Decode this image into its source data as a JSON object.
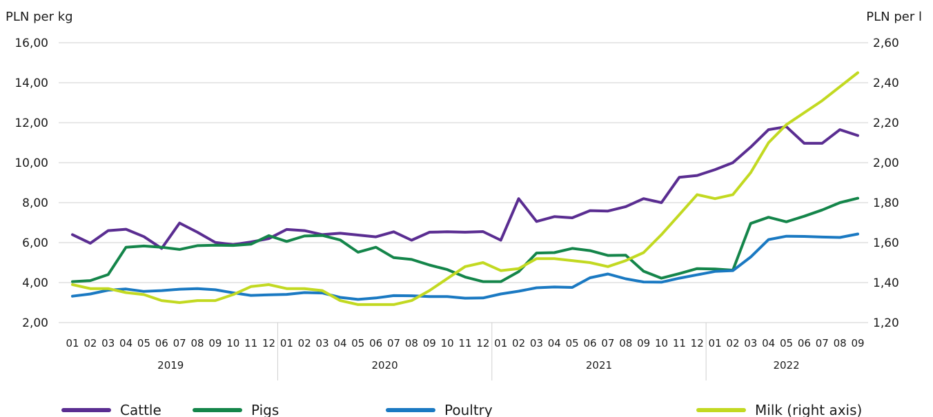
{
  "chart_data": {
    "type": "line",
    "left_unit": "PLN per kg",
    "right_unit": "PLN per l",
    "left_axis": {
      "min": 2,
      "max": 16,
      "ticks": [
        "2,00",
        "4,00",
        "6,00",
        "8,00",
        "10,00",
        "12,00",
        "14,00",
        "16,00"
      ]
    },
    "right_axis": {
      "min": 1.2,
      "max": 2.6,
      "ticks": [
        "1,20",
        "1,40",
        "1,60",
        "1,80",
        "2,00",
        "2,20",
        "2,40",
        "2,60"
      ]
    },
    "months": [
      "01",
      "02",
      "03",
      "04",
      "05",
      "06",
      "07",
      "08",
      "09",
      "10",
      "11",
      "12",
      "01",
      "02",
      "03",
      "04",
      "05",
      "06",
      "07",
      "08",
      "09",
      "10",
      "11",
      "12",
      "01",
      "02",
      "03",
      "04",
      "05",
      "06",
      "07",
      "08",
      "09",
      "10",
      "11",
      "12",
      "01",
      "02",
      "03",
      "04",
      "05",
      "06",
      "07",
      "08",
      "09"
    ],
    "years": [
      {
        "label": "2019",
        "months": 12
      },
      {
        "label": "2020",
        "months": 12
      },
      {
        "label": "2021",
        "months": 12
      },
      {
        "label": "2022",
        "months": 9
      }
    ],
    "grid": true,
    "legend_position": "bottom",
    "series": [
      {
        "name": "Cattle",
        "axis": "left",
        "color": "#5a2d91",
        "values": [
          6.4,
          5.97,
          6.6,
          6.67,
          6.3,
          5.71,
          6.98,
          6.52,
          6.01,
          5.9,
          6.03,
          6.2,
          6.66,
          6.6,
          6.4,
          6.47,
          6.38,
          6.29,
          6.54,
          6.12,
          6.52,
          6.54,
          6.52,
          6.55,
          6.12,
          8.2,
          7.06,
          7.3,
          7.24,
          7.6,
          7.58,
          7.8,
          8.2,
          8.0,
          9.27,
          9.36,
          9.65,
          10.0,
          10.78,
          11.65,
          11.8,
          10.97,
          10.97,
          11.65,
          11.36
        ]
      },
      {
        "name": "Pigs",
        "axis": "left",
        "color": "#14854a",
        "values": [
          4.05,
          4.1,
          4.4,
          5.77,
          5.83,
          5.77,
          5.66,
          5.85,
          5.87,
          5.86,
          5.92,
          6.35,
          6.06,
          6.33,
          6.36,
          6.13,
          5.52,
          5.77,
          5.25,
          5.16,
          4.88,
          4.65,
          4.28,
          4.05,
          4.05,
          4.55,
          5.48,
          5.5,
          5.71,
          5.6,
          5.36,
          5.37,
          4.57,
          4.22,
          4.45,
          4.7,
          4.68,
          4.62,
          6.96,
          7.27,
          7.04,
          7.32,
          7.63,
          8.0,
          8.22
        ]
      },
      {
        "name": "Poultry",
        "axis": "left",
        "color": "#1a79c2",
        "values": [
          3.32,
          3.43,
          3.62,
          3.68,
          3.56,
          3.6,
          3.67,
          3.7,
          3.64,
          3.49,
          3.36,
          3.39,
          3.41,
          3.5,
          3.48,
          3.26,
          3.16,
          3.23,
          3.35,
          3.34,
          3.3,
          3.3,
          3.22,
          3.23,
          3.43,
          3.57,
          3.74,
          3.78,
          3.76,
          4.24,
          4.43,
          4.19,
          4.03,
          4.02,
          4.22,
          4.39,
          4.56,
          4.6,
          5.28,
          6.15,
          6.32,
          6.31,
          6.28,
          6.26,
          6.43
        ]
      },
      {
        "name": "Milk (right axis)",
        "axis": "right",
        "color": "#c2d921",
        "values": [
          1.39,
          1.37,
          1.37,
          1.35,
          1.34,
          1.31,
          1.3,
          1.31,
          1.31,
          1.34,
          1.38,
          1.39,
          1.37,
          1.37,
          1.36,
          1.31,
          1.29,
          1.29,
          1.29,
          1.31,
          1.36,
          1.42,
          1.48,
          1.5,
          1.46,
          1.47,
          1.52,
          1.52,
          1.51,
          1.5,
          1.48,
          1.51,
          1.55,
          1.64,
          1.74,
          1.84,
          1.82,
          1.84,
          1.95,
          2.1,
          2.19,
          2.25,
          2.31,
          2.38,
          2.45
        ]
      }
    ]
  }
}
